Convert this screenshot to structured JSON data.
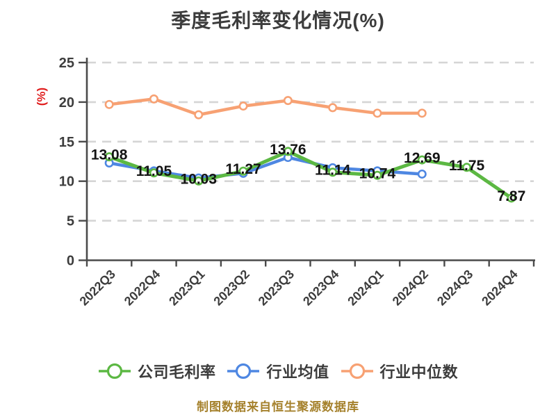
{
  "title": "季度毛利率变化情况(%)",
  "y_axis_unit": "(%)",
  "footer_note": "制图数据来自恒生聚源数据库",
  "colors": {
    "title": "#3c3c3c",
    "axis": "#4a4a4a",
    "tick_label": "#3d3d3d",
    "grid": "#d5d5d5",
    "data_label": "#141414",
    "unit": "#e01e1e",
    "footer": "#a5812c",
    "marker_fill": "#ffffff"
  },
  "chart_data": {
    "type": "line",
    "title": "季度毛利率变化情况(%)",
    "categories": [
      "2022Q3",
      "2022Q4",
      "2023Q1",
      "2023Q2",
      "2023Q3",
      "2023Q4",
      "2024Q1",
      "2024Q2",
      "2024Q3",
      "2024Q4"
    ],
    "series": [
      {
        "id": "company-gross-margin",
        "name": "公司毛利率",
        "color": "#5cb843",
        "data_labels": true,
        "values": [
          13.08,
          11.05,
          10.03,
          11.27,
          13.76,
          11.14,
          10.74,
          12.69,
          11.75,
          7.87
        ]
      },
      {
        "id": "industry-average",
        "name": "行业均值",
        "color": "#4e87e2",
        "data_labels": false,
        "values": [
          12.3,
          11.3,
          10.4,
          11.0,
          13.0,
          11.7,
          11.3,
          10.9,
          null,
          null
        ]
      },
      {
        "id": "industry-median",
        "name": "行业中位数",
        "color": "#f7a173",
        "data_labels": false,
        "values": [
          19.7,
          20.4,
          18.4,
          19.5,
          20.2,
          19.3,
          18.6,
          18.6,
          null,
          null
        ]
      }
    ],
    "ylim": [
      0,
      25
    ],
    "y_ticks": [
      0,
      5,
      10,
      15,
      20,
      25
    ],
    "ylabel": "(%)",
    "xlabel": "",
    "grid": "horizontal-dashed",
    "legend_position": "bottom"
  }
}
